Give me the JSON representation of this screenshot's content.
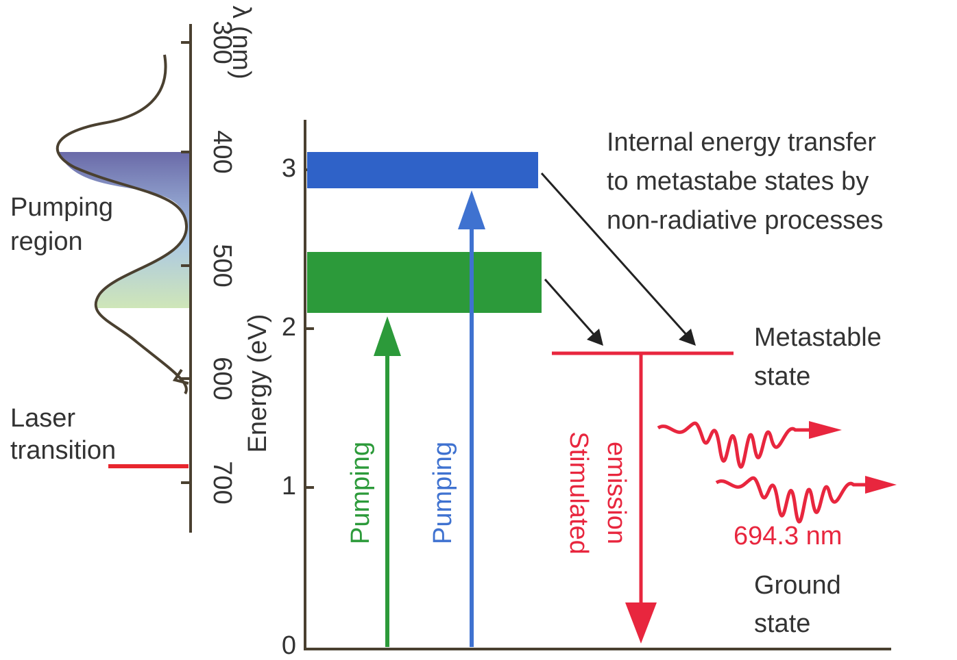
{
  "wavelength_axis": {
    "label": "λ (nm)",
    "ticks": [
      "300",
      "400",
      "500",
      "600",
      "700"
    ]
  },
  "left_labels": {
    "pumping_region": [
      "Pumping",
      "region"
    ],
    "laser_transition": [
      "Laser",
      "transition"
    ]
  },
  "energy_axis": {
    "label": "Energy (eV)",
    "ticks": [
      "0",
      "1",
      "2",
      "3"
    ]
  },
  "arrows": {
    "green_pumping": "Pumping",
    "blue_pumping": "Pumping",
    "stimulated_emission": [
      "Stimulated",
      "emission"
    ]
  },
  "annotations": {
    "transfer": [
      "Internal energy transfer",
      "to metastabe states by",
      "non-radiative processes"
    ],
    "metastable": [
      "Metastable",
      "state"
    ],
    "ground": [
      "Ground",
      "state"
    ],
    "emission_wavelength": "694.3 nm"
  }
}
